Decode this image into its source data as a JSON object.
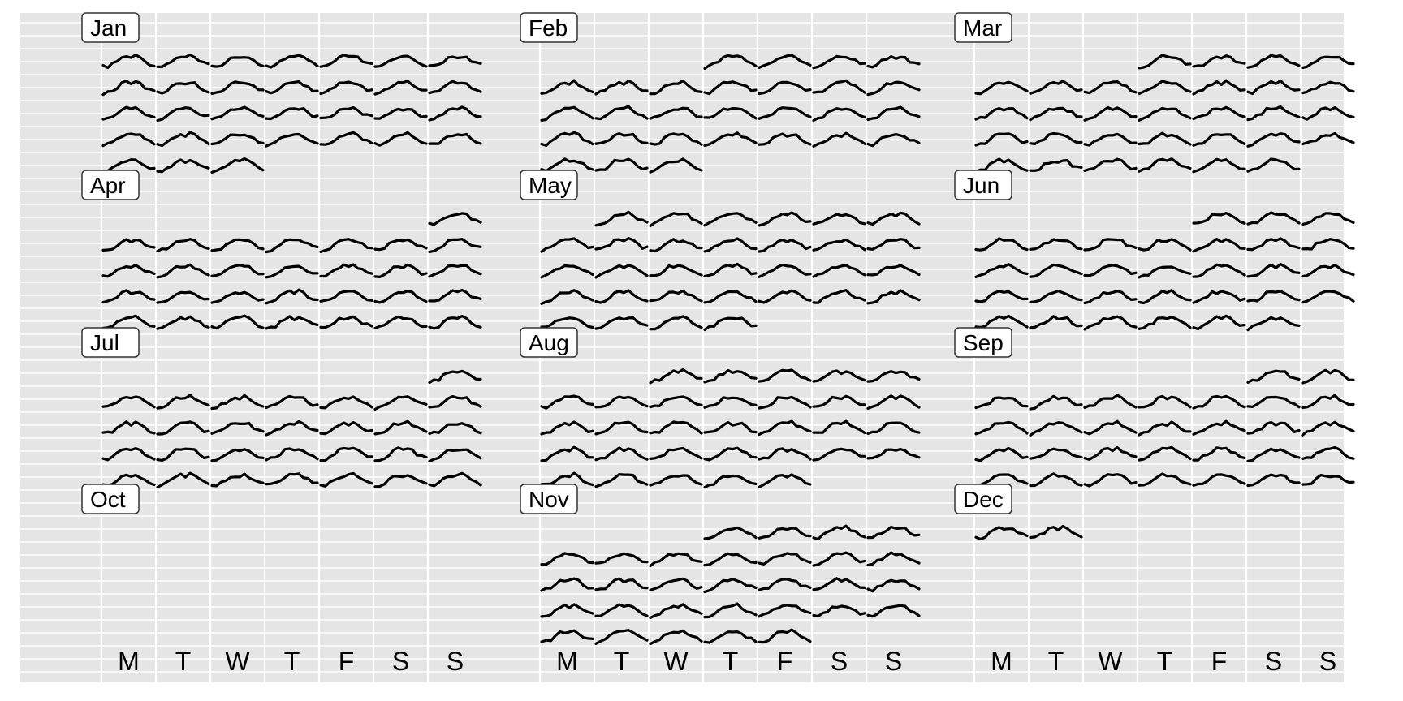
{
  "chart_data": {
    "type": "calendar",
    "title": "",
    "year_start_weekday": "Monday",
    "weekday_labels": [
      "M",
      "T",
      "W",
      "T",
      "F",
      "S",
      "S"
    ],
    "months": [
      {
        "label": "Jan",
        "first_weekday": 0,
        "days": 31
      },
      {
        "label": "Feb",
        "first_weekday": 3,
        "days": 28
      },
      {
        "label": "Mar",
        "first_weekday": 3,
        "days": 31
      },
      {
        "label": "Apr",
        "first_weekday": 6,
        "days": 30
      },
      {
        "label": "May",
        "first_weekday": 1,
        "days": 31
      },
      {
        "label": "Jun",
        "first_weekday": 4,
        "days": 30
      },
      {
        "label": "Jul",
        "first_weekday": 6,
        "days": 31
      },
      {
        "label": "Aug",
        "first_weekday": 2,
        "days": 31
      },
      {
        "label": "Sep",
        "first_weekday": 5,
        "days": 30
      },
      {
        "label": "Oct",
        "first_weekday": 0,
        "days": 0
      },
      {
        "label": "Nov",
        "first_weekday": 3,
        "days": 30
      },
      {
        "label": "Dec",
        "first_weekday": 0,
        "days": 2
      }
    ],
    "daily_profile_shape": [
      0.15,
      0.2,
      0.35,
      0.6,
      0.85,
      0.95,
      0.9,
      1.0,
      0.85,
      0.6,
      0.4,
      0.3
    ],
    "grid": true,
    "colors": {
      "panel_background": "#e5e5e5",
      "grid_line": "#ffffff",
      "trace": "#000000",
      "strip_background": "#ffffff",
      "strip_border": "#333333"
    }
  }
}
